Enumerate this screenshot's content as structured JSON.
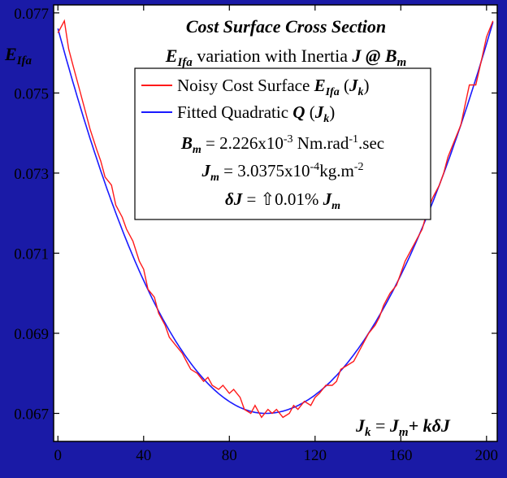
{
  "chart_data": {
    "type": "line",
    "title": "Cost Surface Cross Section",
    "subtitle": {
      "var": "E",
      "var_sub": "Ifa",
      "text": " variation with Inertia ",
      "J": "J",
      "at": " @ ",
      "B": "B",
      "B_sub": "m"
    },
    "ylabel": {
      "main": "E",
      "sub": "Ifa"
    },
    "xlabel": {
      "lhs": "J",
      "lhs_sub": "k",
      "eq": " = ",
      "Jm": "J",
      "Jm_sub": "m",
      "plus": "+ k",
      "dJ": "δJ"
    },
    "xlim": [
      -2,
      205
    ],
    "ylim": [
      0.0663,
      0.0772
    ],
    "xticks": [
      "0",
      "40",
      "80",
      "120",
      "160",
      "200"
    ],
    "xtick_values": [
      0,
      40,
      80,
      120,
      160,
      200
    ],
    "yticks": [
      "0.077",
      "0.075",
      "0.073",
      "0.071",
      "0.069",
      "0.067"
    ],
    "ytick_values": [
      0.077,
      0.075,
      0.073,
      0.071,
      0.069,
      0.067
    ],
    "series": [
      {
        "name": "Noisy Cost Surface",
        "color": "#ff1a1a",
        "x": [
          0,
          3,
          5,
          7,
          10,
          13,
          15,
          18,
          20,
          22,
          25,
          27,
          30,
          32,
          35,
          38,
          40,
          42,
          45,
          47,
          50,
          52,
          55,
          58,
          60,
          62,
          65,
          68,
          70,
          72,
          75,
          77,
          80,
          82,
          85,
          87,
          90,
          92,
          95,
          98,
          100,
          102,
          105,
          108,
          110,
          112,
          115,
          118,
          120,
          122,
          125,
          128,
          130,
          132,
          135,
          138,
          140,
          142,
          145,
          148,
          150,
          152,
          155,
          158,
          160,
          162,
          165,
          168,
          170,
          172,
          175,
          178,
          180,
          182,
          185,
          188,
          190,
          192,
          195,
          198,
          200,
          203
        ],
        "y": [
          0.0765,
          0.0768,
          0.0761,
          0.0757,
          0.0751,
          0.0745,
          0.0741,
          0.0736,
          0.0733,
          0.0729,
          0.0727,
          0.0722,
          0.0719,
          0.0716,
          0.0713,
          0.0708,
          0.0706,
          0.0701,
          0.0699,
          0.0695,
          0.0692,
          0.0689,
          0.0687,
          0.0685,
          0.0683,
          0.0681,
          0.068,
          0.0678,
          0.0679,
          0.0677,
          0.0676,
          0.0677,
          0.0675,
          0.0676,
          0.0674,
          0.0671,
          0.067,
          0.0672,
          0.0669,
          0.0671,
          0.067,
          0.0671,
          0.0669,
          0.067,
          0.0672,
          0.0671,
          0.0673,
          0.0672,
          0.0674,
          0.0675,
          0.0677,
          0.0677,
          0.0678,
          0.0681,
          0.0682,
          0.0683,
          0.0685,
          0.0687,
          0.069,
          0.0692,
          0.0694,
          0.0697,
          0.07,
          0.0702,
          0.0705,
          0.0708,
          0.0711,
          0.0714,
          0.0716,
          0.072,
          0.0724,
          0.0727,
          0.073,
          0.0734,
          0.0738,
          0.0742,
          0.0747,
          0.0752,
          0.0752,
          0.0759,
          0.0764,
          0.0768
        ]
      },
      {
        "name": "Fitted Quadratic",
        "color": "#1a1aff",
        "vertex_x": 97,
        "vertex_y": 0.067,
        "left_y": 0.07661,
        "right_y": 0.07677
      }
    ],
    "legend": {
      "items": [
        {
          "label": "Noisy Cost Surface ",
          "expr": "E",
          "expr_sub": "Ifa",
          "arg": "J",
          "arg_sub": "k"
        },
        {
          "label": "Fitted Quadratic ",
          "expr": "Q",
          "arg": "J",
          "arg_sub": "k"
        }
      ],
      "placement": "top-center"
    },
    "annotations": {
      "Bm": {
        "sym": "B",
        "sub": "m",
        "text": " = 2.226x10",
        "exp": "-3",
        "rest": " Nm.rad",
        "exp2": "-1",
        "rest2": ".sec"
      },
      "Jm": {
        "sym": "J",
        "sub": "m",
        "text": " = 3.0375x10",
        "exp": "-4",
        "rest": "kg.m",
        "exp2": "-2"
      },
      "dJ": {
        "sym": "δJ",
        "eq": " = ",
        "arrow": "⇧",
        "val": "0.01% ",
        "Jsym": "J",
        "Jsub": "m"
      }
    },
    "grid": false
  }
}
